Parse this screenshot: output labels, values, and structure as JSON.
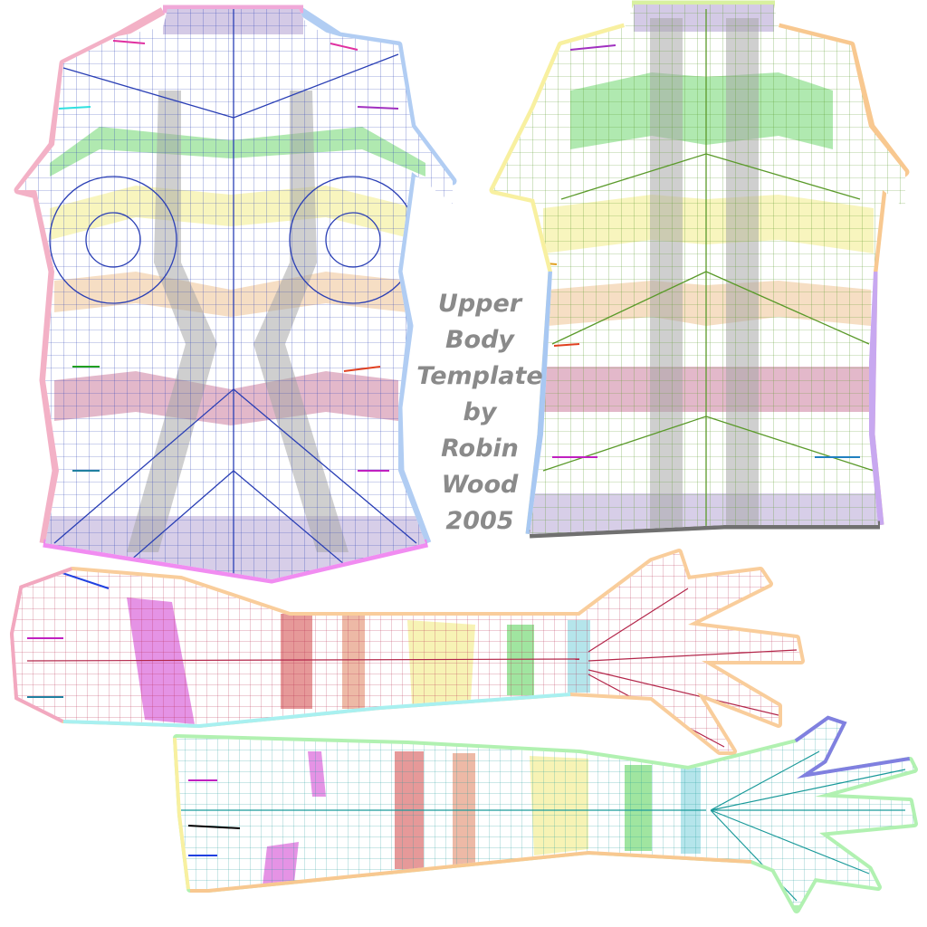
{
  "caption": {
    "line1": "Upper",
    "line2": "Body",
    "line3": "Template",
    "line4": "by",
    "line5": "Robin",
    "line6": "Wood",
    "line7": "2005"
  },
  "colors": {
    "front_mesh": "#2a3fb5",
    "back_mesh": "#5a9a2a",
    "arm_top_mesh": "#b3264a",
    "arm_bottom_mesh": "#1a9a9a",
    "band_green": "#8fe08f",
    "band_yellow": "#f6f1a8",
    "band_peach": "#f3d3b0",
    "band_rose": "#d9a0b8",
    "band_grey": "#b8b8b8",
    "band_lavender": "#c9bde0",
    "band_magenta": "#e080e0",
    "band_red": "#e08080",
    "band_cyan": "#a8e0e8",
    "outline_pink": "#f2a8c0",
    "outline_blue": "#a8c8f2",
    "outline_violet": "#c8a8f0",
    "outline_cyan": "#a8f0f0",
    "outline_yellow": "#f8f0a0",
    "outline_orange": "#f8c890"
  }
}
